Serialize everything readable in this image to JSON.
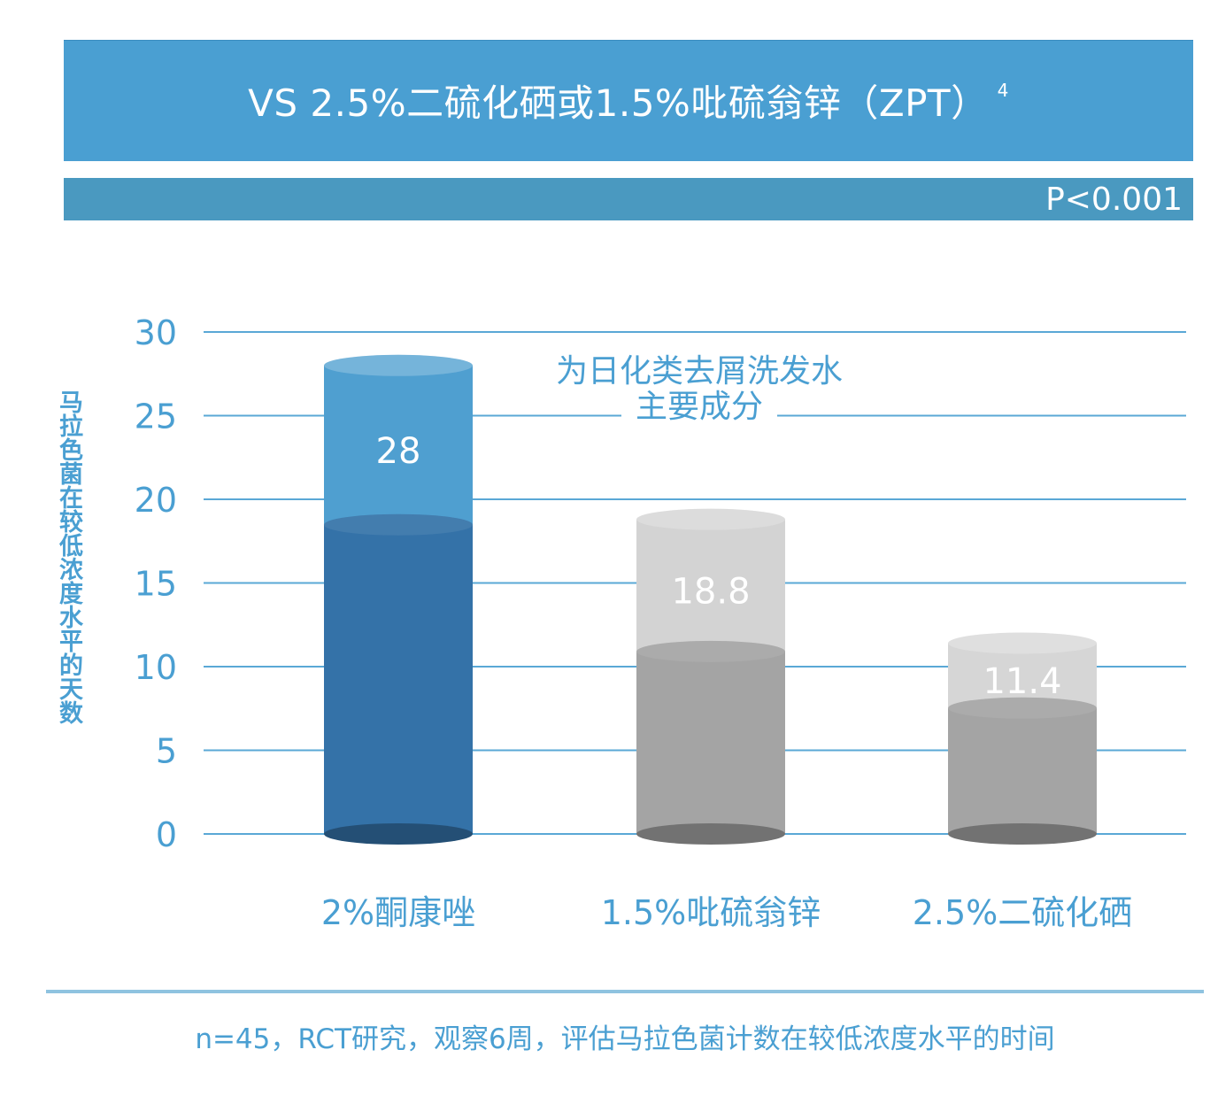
{
  "header": {
    "title": "VS 2.5%二硫化硒或1.5%吡硫翁锌（ZPT）",
    "title_superscript": "4",
    "p_value": "P<0.001"
  },
  "annotation": {
    "line1": "为日化类去屑洗发水",
    "line2": "主要成分"
  },
  "footnote": "n=45，RCT研究，观察6周，评估马拉色菌计数在较低浓度水平的时间",
  "colors": {
    "title_banner": "#4a9fd2",
    "p_bar": "#4a99c0",
    "text_blue": "#4a9fd2",
    "grid": "#5aa8d6",
    "ketoconazole_top": "#4f9fd0",
    "ketoconazole_body": "#3472a8",
    "zpt_top": "#d3d3d3",
    "zpt_body": "#a4a4a4",
    "selenium_top": "#d6d6d6",
    "selenium_body": "#a4a4a4"
  },
  "chart_data": {
    "type": "bar",
    "categories": [
      "2%酮康唑",
      "1.5%吡硫翁锌",
      "2.5%二硫化硒"
    ],
    "values": [
      28,
      18.8,
      11.4
    ],
    "value_labels": [
      "28",
      "18.8",
      "11.4"
    ],
    "ylabel": "马拉色菌在较低浓度水平的天数",
    "yticks": [
      0,
      5,
      10,
      15,
      20,
      25,
      30
    ],
    "ylim": [
      0,
      30
    ],
    "grid": true
  }
}
